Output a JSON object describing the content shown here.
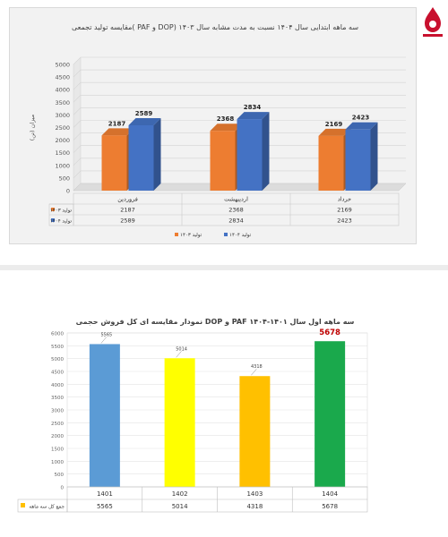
{
  "chart_data": [
    {
      "type": "bar",
      "title": "مقایسه تولید تجمعی( PAF و DOP) سه ماهه ابتدایی سال ۱۴۰۴ نسبت به مدت مشابه سال ۱۴۰۳",
      "ylabel": "میزان (تن)",
      "ylim": [
        0,
        5000
      ],
      "yticks": [
        0,
        500,
        1000,
        1500,
        2000,
        2500,
        3000,
        3500,
        4000,
        4500,
        5000
      ],
      "categories": [
        "فروردین",
        "اردیبهشت",
        "خرداد"
      ],
      "series": [
        {
          "name": "تولید ۱۴۰۳",
          "color": "#ed7d31",
          "values": [
            2187,
            2368,
            2169
          ]
        },
        {
          "name": "تولید ۱۴۰۴",
          "color": "#4472c4",
          "values": [
            2589,
            2834,
            2423
          ]
        }
      ],
      "legend_position": "bottom",
      "grid": true
    },
    {
      "type": "bar",
      "title": "نمودار مقایسه ای کل فروش حجمی DOP و PAF سه ماهه اول سال ۱۴۰۱-۱۴۰۴",
      "ylim": [
        0,
        6000
      ],
      "yticks": [
        0,
        500,
        1000,
        1500,
        2000,
        2500,
        3000,
        3500,
        4000,
        4500,
        5000,
        5500,
        6000
      ],
      "categories": [
        "1401",
        "1402",
        "1403",
        "1404"
      ],
      "series": [
        {
          "name": "جمع کل سه ماهه",
          "values": [
            5565,
            5014,
            4318,
            5678
          ]
        }
      ],
      "bar_colors": [
        "#5b9bd5",
        "#ffff00",
        "#ffc000",
        "#1aa94c"
      ],
      "highlight_color": "#c00000",
      "legend_color": "#ffc000",
      "grid": true
    }
  ]
}
